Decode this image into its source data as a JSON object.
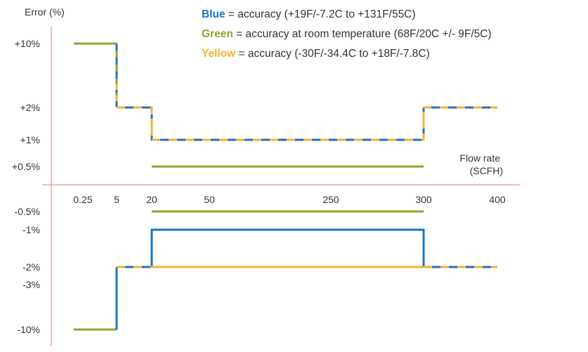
{
  "chart_data": {
    "type": "line",
    "title": "",
    "ylabel": "Error (%)",
    "xlabel": "Flow rate (SCFH)",
    "xlabel_lines": [
      "Flow rate",
      "(SCFH)"
    ],
    "x_categories": [
      "0.25",
      "5",
      "20",
      "50",
      "250",
      "300",
      "400"
    ],
    "y_ticks": [
      "+10%",
      "+2%",
      "+1%",
      "+0.5%",
      "-0.5%",
      "-1%",
      "-2%",
      "-3%",
      "-10%"
    ],
    "legend": [
      {
        "key": "Blue",
        "text": " = accuracy (+19F/-7.2C to +131F/55C)",
        "color": "#1b75bb"
      },
      {
        "key": "Green",
        "text": " = accuracy at room temperature (68F/20C +/- 9F/5C)",
        "color": "#8ca52a"
      },
      {
        "key": "Yellow",
        "text": " = accuracy (-30F/-34.4C to +18F/-7.8C)",
        "color": "#f2b332"
      }
    ],
    "series": [
      {
        "name": "Blue",
        "color": "#1b75bb",
        "upper": [
          {
            "from": "5",
            "to": "20",
            "value": "+2%"
          },
          {
            "from": "20",
            "to": "300",
            "value": "+1%"
          },
          {
            "from": "300",
            "to": "400",
            "value": "+2%"
          }
        ],
        "lower": [
          {
            "from": "5",
            "to": "20",
            "value": "-2%"
          },
          {
            "from": "20",
            "to": "300",
            "value": "-1%"
          },
          {
            "from": "300",
            "to": "400",
            "value": "-2%"
          }
        ]
      },
      {
        "name": "Green",
        "color": "#8ca52a",
        "upper": [
          {
            "from": "0.25",
            "to": "5",
            "value": "+10%"
          },
          {
            "from": "20",
            "to": "300",
            "value": "+0.5%"
          }
        ],
        "lower": [
          {
            "from": "0.25",
            "to": "5",
            "value": "-10%"
          },
          {
            "from": "20",
            "to": "300",
            "value": "-0.5%"
          }
        ]
      },
      {
        "name": "Yellow",
        "color": "#f2b332",
        "upper": [
          {
            "from": "5",
            "to": "20",
            "value": "+2%"
          },
          {
            "from": "20",
            "to": "300",
            "value": "+1%"
          },
          {
            "from": "300",
            "to": "400",
            "value": "+2%"
          }
        ],
        "lower": [
          {
            "from": "5",
            "to": "20",
            "value": "-2%"
          },
          {
            "from": "20",
            "to": "300",
            "value": "-2%"
          },
          {
            "from": "300",
            "to": "400",
            "value": "-2%"
          }
        ]
      }
    ],
    "axis_color": "#e07a7a"
  }
}
